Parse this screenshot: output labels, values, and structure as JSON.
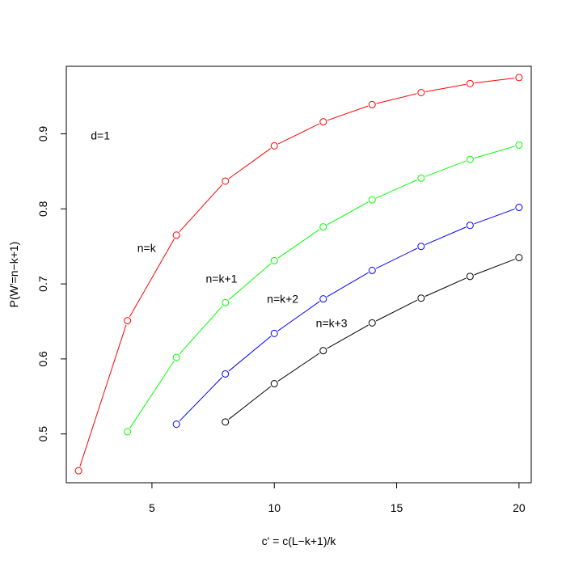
{
  "chart_data": {
    "type": "line",
    "title": "",
    "xlabel": "c' = c(L−k+1)/k",
    "ylabel": "P(W'=n−k+1)",
    "xlim": [
      1.5,
      20.5
    ],
    "ylim": [
      0.435,
      0.99
    ],
    "x_ticks": [
      5,
      10,
      15,
      20
    ],
    "y_ticks": [
      0.5,
      0.6,
      0.7,
      0.8,
      0.9
    ],
    "x_tick_labels": [
      "5",
      "10",
      "15",
      "20"
    ],
    "y_tick_labels": [
      "0.5",
      "0.6",
      "0.7",
      "0.8",
      "0.9"
    ],
    "grid": false,
    "legend": "none",
    "series": [
      {
        "name": "n=k",
        "color": "#ff0000",
        "x": [
          2,
          4,
          6,
          8,
          10,
          12,
          14,
          16,
          18,
          20
        ],
        "y": [
          0.451,
          0.651,
          0.765,
          0.837,
          0.884,
          0.916,
          0.939,
          0.955,
          0.967,
          0.975
        ]
      },
      {
        "name": "n=k+1",
        "color": "#00ff00",
        "x": [
          4,
          6,
          8,
          10,
          12,
          14,
          16,
          18,
          20
        ],
        "y": [
          0.503,
          0.602,
          0.675,
          0.731,
          0.776,
          0.812,
          0.841,
          0.866,
          0.885
        ]
      },
      {
        "name": "n=k+2",
        "color": "#0000ff",
        "x": [
          6,
          8,
          10,
          12,
          14,
          16,
          18,
          20
        ],
        "y": [
          0.513,
          0.58,
          0.634,
          0.68,
          0.718,
          0.75,
          0.778,
          0.802
        ]
      },
      {
        "name": "n=k+3",
        "color": "#000000",
        "x": [
          8,
          10,
          12,
          14,
          16,
          18,
          20
        ],
        "y": [
          0.516,
          0.567,
          0.611,
          0.648,
          0.681,
          0.71,
          0.735
        ]
      }
    ],
    "annotations": [
      {
        "text": "d=1",
        "x": 2.5,
        "y": 0.898
      },
      {
        "text": "n=k",
        "x": 4.4,
        "y": 0.748
      },
      {
        "text": "n=k+1",
        "x": 7.2,
        "y": 0.707
      },
      {
        "text": "n=k+2",
        "x": 9.7,
        "y": 0.68
      },
      {
        "text": "n=k+3",
        "x": 11.7,
        "y": 0.648
      }
    ]
  }
}
